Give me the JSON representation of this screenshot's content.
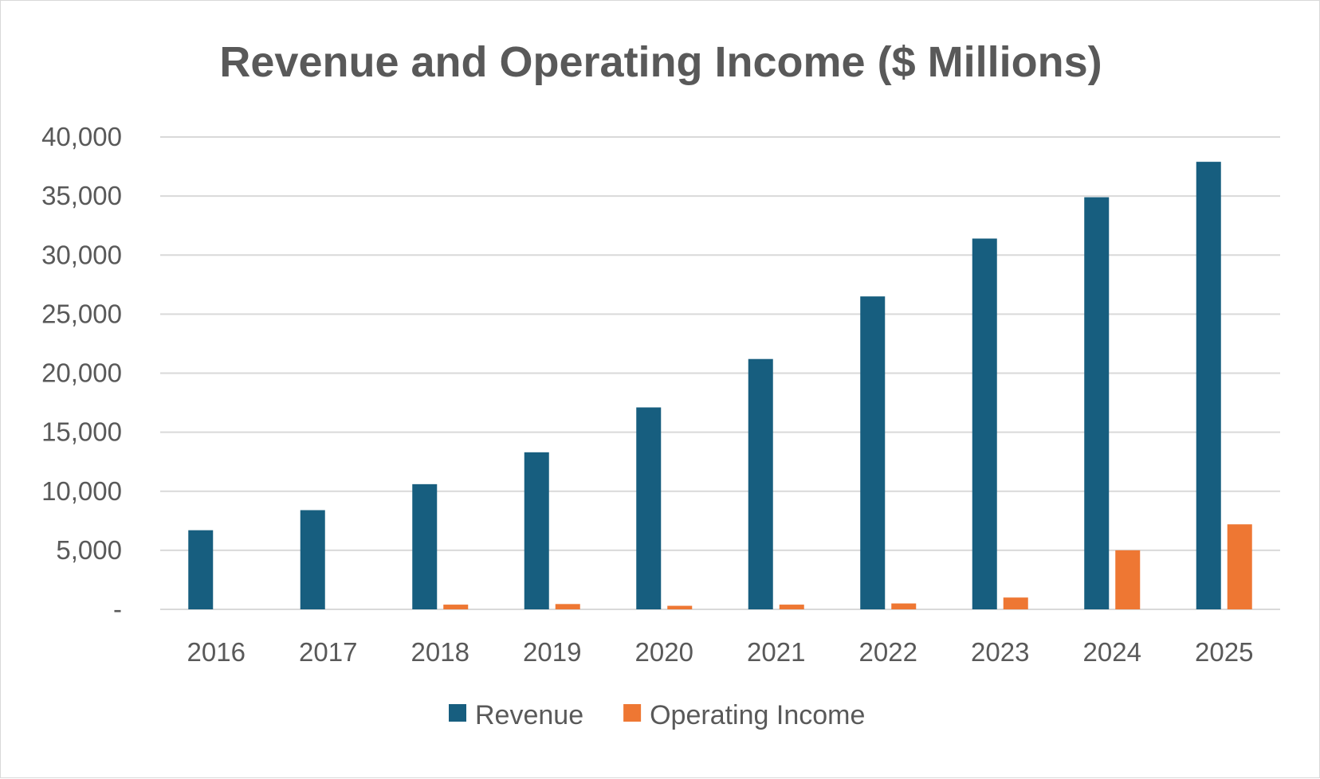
{
  "chart_data": {
    "type": "bar",
    "title": "Revenue and Operating Income ($ Millions)",
    "xlabel": "",
    "ylabel": "",
    "categories": [
      "2016",
      "2017",
      "2018",
      "2019",
      "2020",
      "2021",
      "2022",
      "2023",
      "2024",
      "2025"
    ],
    "series": [
      {
        "name": "Revenue",
        "color": "#175e7f",
        "values": [
          6700,
          8400,
          10600,
          13300,
          17100,
          21200,
          26500,
          31400,
          34900,
          37900
        ]
      },
      {
        "name": "Operating Income",
        "color": "#ee7733",
        "values": [
          0,
          0,
          400,
          450,
          300,
          400,
          500,
          1000,
          5000,
          7200
        ]
      }
    ],
    "ylim": [
      0,
      40000
    ],
    "y_ticks": [
      0,
      5000,
      10000,
      15000,
      20000,
      25000,
      30000,
      35000,
      40000
    ],
    "y_tick_labels": [
      "-",
      "5,000",
      "10,000",
      "15,000",
      "20,000",
      "25,000",
      "30,000",
      "35,000",
      "40,000"
    ],
    "grid": true,
    "legend_position": "bottom"
  }
}
